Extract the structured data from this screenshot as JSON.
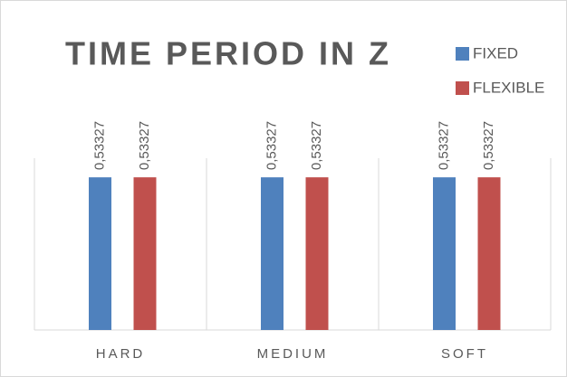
{
  "chart_data": {
    "type": "bar",
    "title": "TIME PERIOD IN Z",
    "categories": [
      "HARD",
      "MEDIUM",
      "SOFT"
    ],
    "series": [
      {
        "name": "FIXED",
        "color": "#4f81bd",
        "values": [
          0.53327,
          0.53327,
          0.53327
        ],
        "value_labels": [
          "0,53327",
          "0,53327",
          "0,53327"
        ]
      },
      {
        "name": "FLEXIBLE",
        "color": "#c0504d",
        "values": [
          0.53327,
          0.53327,
          0.53327
        ],
        "value_labels": [
          "0,53327",
          "0,53327",
          "0,53327"
        ]
      }
    ],
    "ylim": [
      0,
      0.6
    ],
    "legend": "top-right"
  }
}
